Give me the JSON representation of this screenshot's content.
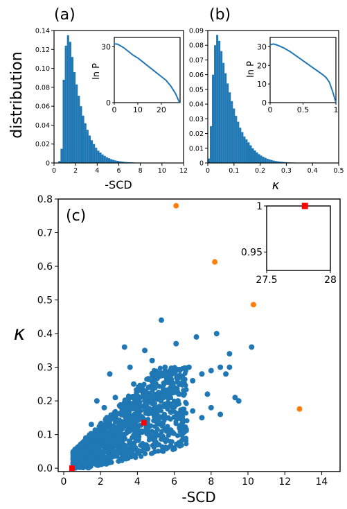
{
  "figure": {
    "ylabel_shared": "distribution"
  },
  "chart_data": [
    {
      "id": "a",
      "type": "bar",
      "panel_label": "(a)",
      "xlabel": "-SCD",
      "ylabel": "distribution",
      "xlim": [
        0,
        12
      ],
      "ylim": [
        0,
        0.14
      ],
      "xticks": [
        "0",
        "2",
        "4",
        "6",
        "8",
        "10",
        "12"
      ],
      "yticks": [
        "0",
        "0.02",
        "0.04",
        "0.06",
        "0.08",
        "0.10",
        "0.12",
        "0.14"
      ],
      "bin_start": 0.4,
      "bin_width": 0.2,
      "values": [
        0.002,
        0.015,
        0.088,
        0.124,
        0.135,
        0.128,
        0.112,
        0.096,
        0.083,
        0.071,
        0.06,
        0.05,
        0.042,
        0.035,
        0.029,
        0.024,
        0.02,
        0.016,
        0.013,
        0.011,
        0.009,
        0.0075,
        0.006,
        0.005,
        0.004,
        0.0033,
        0.0027,
        0.0022,
        0.0018,
        0.0015,
        0.0012,
        0.001,
        0.0008,
        0.0007,
        0.0006,
        0.0005,
        0.0004,
        0.0004,
        0.0003,
        0.0003,
        0.0002,
        0.0002,
        0.0002,
        0.0001,
        0.0001,
        0.0001,
        0.0001,
        0.0001
      ],
      "color": "#1f77b4",
      "inset": {
        "type": "line",
        "ylabel": "ln P",
        "xlim": [
          0,
          28
        ],
        "ylim": [
          0,
          35
        ],
        "xticks": [
          "0",
          "10",
          "20"
        ],
        "yticks": [
          "0",
          "30"
        ],
        "x": [
          0,
          1,
          2,
          4,
          6,
          8,
          10,
          12,
          14,
          16,
          18,
          20,
          22,
          24,
          26,
          27.8
        ],
        "y": [
          31.5,
          31.5,
          31,
          29.5,
          27.5,
          25.5,
          24,
          22,
          20,
          18,
          16,
          14,
          12,
          9,
          5,
          0
        ],
        "color": "#1f77b4"
      }
    },
    {
      "id": "b",
      "type": "bar",
      "panel_label": "(b)",
      "xlabel": "κ",
      "xlim": [
        0,
        0.5
      ],
      "ylim": [
        0,
        0.09
      ],
      "xticks": [
        "0",
        "0.1",
        "0.2",
        "0.3",
        "0.4",
        "0.5"
      ],
      "yticks": [
        "0",
        "0.01",
        "0.02",
        "0.03",
        "0.04",
        "0.05",
        "0.06",
        "0.07",
        "0.08",
        "0.09"
      ],
      "bin_start": 0.0,
      "bin_width": 0.008,
      "values": [
        0.003,
        0.025,
        0.06,
        0.08,
        0.087,
        0.083,
        0.076,
        0.068,
        0.061,
        0.054,
        0.048,
        0.042,
        0.037,
        0.032,
        0.028,
        0.024,
        0.021,
        0.018,
        0.016,
        0.014,
        0.012,
        0.01,
        0.0085,
        0.0072,
        0.006,
        0.005,
        0.0042,
        0.0035,
        0.0029,
        0.0024,
        0.002,
        0.0016,
        0.0013,
        0.0011,
        0.0009,
        0.0008,
        0.0006,
        0.0005,
        0.0004,
        0.0004,
        0.0003,
        0.0003,
        0.0002,
        0.0002,
        0.0002,
        0.0001,
        0.0001,
        0.0001,
        0.0001,
        0.0001,
        0.0001,
        0.0001,
        0.0001,
        0.0001,
        0.0001
      ],
      "color": "#1f77b4",
      "inset": {
        "type": "line",
        "ylabel": "ln P",
        "xlim": [
          0,
          1
        ],
        "ylim": [
          0,
          35
        ],
        "xticks": [
          "0",
          "0.5",
          "1"
        ],
        "yticks": [
          "0",
          "10",
          "20",
          "30"
        ],
        "x": [
          0,
          0.05,
          0.1,
          0.2,
          0.3,
          0.4,
          0.5,
          0.6,
          0.7,
          0.8,
          0.85,
          0.9,
          0.95,
          1.0
        ],
        "y": [
          31,
          31.5,
          31,
          29.5,
          27.5,
          25,
          22.5,
          20,
          17.5,
          15,
          13.5,
          11,
          6,
          0
        ],
        "color": "#1f77b4"
      }
    },
    {
      "id": "c",
      "type": "scatter",
      "panel_label": "(c)",
      "xlabel": "-SCD",
      "ylabel": "κ",
      "xlim": [
        -0.3,
        15
      ],
      "ylim": [
        -0.01,
        0.8
      ],
      "xticks": [
        "0",
        "2",
        "4",
        "6",
        "8",
        "10",
        "12",
        "14"
      ],
      "yticks": [
        "0.0",
        "0.1",
        "0.2",
        "0.3",
        "0.4",
        "0.5",
        "0.6",
        "0.7",
        "0.8"
      ],
      "series": [
        {
          "color": "#1f77b4",
          "points": [
            [
              0.5,
              0.0
            ],
            [
              0.8,
              0.01
            ],
            [
              1.0,
              0.02
            ],
            [
              1.2,
              0.04
            ],
            [
              1.5,
              0.06
            ],
            [
              2.0,
              0.08
            ],
            [
              2.5,
              0.1
            ],
            [
              3.0,
              0.13
            ],
            [
              3.5,
              0.15
            ],
            [
              4.0,
              0.17
            ],
            [
              4.5,
              0.19
            ],
            [
              5.0,
              0.21
            ],
            [
              5.5,
              0.22
            ],
            [
              6.0,
              0.24
            ],
            [
              6.5,
              0.25
            ],
            [
              7.0,
              0.26
            ],
            [
              7.5,
              0.28
            ],
            [
              8.0,
              0.29
            ],
            [
              8.5,
              0.3
            ],
            [
              9.0,
              0.3
            ],
            [
              9.5,
              0.2
            ],
            [
              10.2,
              0.36
            ],
            [
              8.3,
              0.4
            ],
            [
              7.2,
              0.39
            ],
            [
              6.1,
              0.37
            ],
            [
              5.3,
              0.44
            ],
            [
              4.4,
              0.35
            ],
            [
              3.3,
              0.36
            ],
            [
              2.5,
              0.28
            ],
            [
              1.8,
              0.2
            ],
            [
              4.8,
              0.32
            ],
            [
              6.8,
              0.3
            ],
            [
              5.8,
              0.26
            ],
            [
              7.8,
              0.22
            ],
            [
              8.8,
              0.28
            ],
            [
              9.0,
              0.34
            ],
            [
              3.8,
              0.25
            ],
            [
              2.2,
              0.18
            ],
            [
              5.0,
              0.14
            ],
            [
              7.5,
              0.15
            ],
            [
              6.5,
              0.12
            ],
            [
              8.0,
              0.18
            ],
            [
              9.3,
              0.21
            ],
            [
              4.2,
              0.11
            ],
            [
              3.0,
              0.08
            ],
            [
              1.5,
              0.13
            ],
            [
              2.8,
              0.21
            ],
            [
              5.5,
              0.3
            ],
            [
              6.2,
              0.2
            ],
            [
              7.0,
              0.17
            ],
            [
              8.5,
              0.16
            ],
            [
              4.6,
              0.24
            ],
            [
              3.6,
              0.3
            ],
            [
              2.3,
              0.1
            ],
            [
              1.2,
              0.09
            ]
          ]
        },
        {
          "color": "#ff7f0e",
          "points": [
            [
              6.1,
              0.78
            ],
            [
              8.2,
              0.613
            ],
            [
              10.3,
              0.486
            ],
            [
              12.8,
              0.176
            ]
          ]
        },
        {
          "color": "#ff0000",
          "marker": "square",
          "points": [
            [
              0.45,
              0.0
            ],
            [
              4.35,
              0.135
            ]
          ]
        }
      ],
      "inset": {
        "xlim": [
          27.5,
          28
        ],
        "ylim": [
          0.93,
          1.0
        ],
        "xticks": [
          "27.5",
          "28"
        ],
        "yticks": [
          "0.95",
          "1"
        ],
        "points": [
          [
            27.8,
            1.0
          ]
        ],
        "color": "#ff0000"
      }
    }
  ]
}
